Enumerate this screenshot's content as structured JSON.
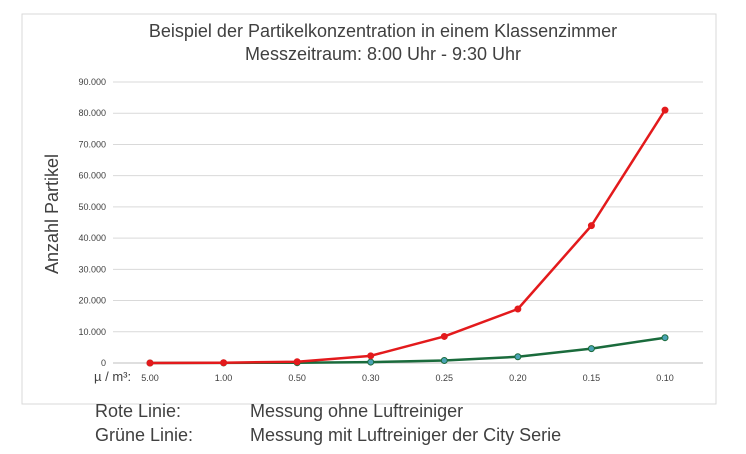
{
  "chart_data": {
    "type": "line",
    "title_line1": "Beispiel der Partikelkonzentration in einem Klassenzimmer",
    "title_line2": "Messzeitraum: 8:00 Uhr - 9:30 Uhr",
    "ylabel": "Anzahl Partikel",
    "x_prefix": "µ / m³:",
    "categories": [
      "5.00",
      "1.00",
      "0.50",
      "0.30",
      "0.25",
      "0.20",
      "0.15",
      "0.10"
    ],
    "y_ticks": [
      "0",
      "10.000",
      "20.000",
      "30.000",
      "40.000",
      "50.000",
      "60.000",
      "70.000",
      "80.000",
      "90.000"
    ],
    "ylim": [
      0,
      90000
    ],
    "grid": true,
    "series": [
      {
        "name": "Rote Linie",
        "color": "#e31a1c",
        "values": [
          0,
          100,
          400,
          2300,
          8500,
          17300,
          44000,
          81000
        ]
      },
      {
        "name": "Grüne Linie",
        "color": "#1a6b3c",
        "marker_color": "#4aa3b5",
        "values": [
          0,
          50,
          100,
          300,
          800,
          2000,
          4600,
          8100
        ]
      }
    ]
  },
  "legend": [
    {
      "key": "Rote Linie:",
      "value": "Messung ohne Luftreiniger"
    },
    {
      "key": "Grüne Linie:",
      "value": "Messung mit Luftreiniger der City Serie"
    }
  ]
}
